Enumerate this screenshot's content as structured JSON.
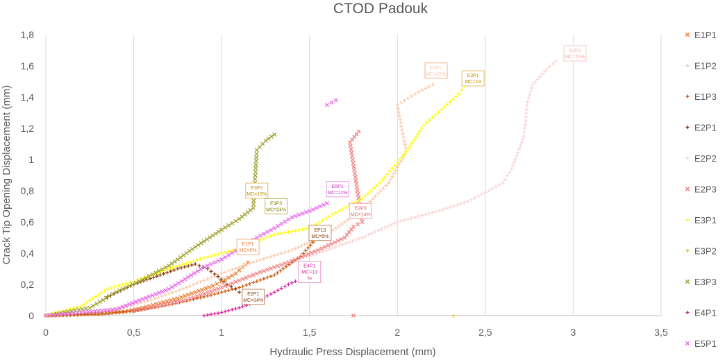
{
  "chart_data": {
    "type": "scatter",
    "title": "CTOD Padouk",
    "xlabel": "Hydraulic Press Displacement (mm)",
    "ylabel": "Crack Tip Opening Displacement (mm)",
    "xlim": [
      0,
      3.5
    ],
    "ylim": [
      0,
      1.8
    ],
    "x_ticks": [
      "0",
      "0,5",
      "1",
      "1,5",
      "2",
      "2,5",
      "3",
      "3,5"
    ],
    "y_ticks": [
      "0",
      "0,2",
      "0,4",
      "0,6",
      "0,8",
      "1",
      "1,2",
      "1,4",
      "1,6",
      "1,8"
    ],
    "grid": "vertical",
    "legend_position": "right",
    "series": [
      {
        "name": "E1P1",
        "color": "#ED7D31",
        "marker": "x",
        "points": [
          [
            0.0,
            0.0
          ],
          [
            0.15,
            0.005
          ],
          [
            0.3,
            0.012
          ],
          [
            0.45,
            0.025
          ],
          [
            0.55,
            0.05
          ],
          [
            0.65,
            0.08
          ],
          [
            0.75,
            0.11
          ],
          [
            0.85,
            0.15
          ],
          [
            0.95,
            0.19
          ],
          [
            1.02,
            0.23
          ],
          [
            1.08,
            0.27
          ],
          [
            1.12,
            0.31
          ],
          [
            1.15,
            0.34
          ]
        ]
      },
      {
        "name": "E1P2",
        "color": "#F8CBAD",
        "marker": "plus",
        "points": [
          [
            0.0,
            0.0
          ],
          [
            0.2,
            0.01
          ],
          [
            0.4,
            0.04
          ],
          [
            0.6,
            0.1
          ],
          [
            0.8,
            0.18
          ],
          [
            1.0,
            0.27
          ],
          [
            1.2,
            0.35
          ],
          [
            1.4,
            0.42
          ],
          [
            1.6,
            0.52
          ],
          [
            1.8,
            0.68
          ],
          [
            1.95,
            0.85
          ],
          [
            2.05,
            1.05
          ],
          [
            2.0,
            1.35
          ],
          [
            2.1,
            1.42
          ],
          [
            2.2,
            1.48
          ]
        ]
      },
      {
        "name": "E1P3",
        "color": "#C55A11",
        "marker": "plus",
        "points": [
          [
            0.0,
            0.0
          ],
          [
            0.3,
            0.01
          ],
          [
            0.5,
            0.03
          ],
          [
            0.7,
            0.07
          ],
          [
            0.9,
            0.12
          ],
          [
            1.1,
            0.18
          ],
          [
            1.3,
            0.26
          ],
          [
            1.45,
            0.38
          ],
          [
            1.52,
            0.47
          ]
        ]
      },
      {
        "name": "E2P1",
        "color": "#843C0C",
        "marker": "plus",
        "points": [
          [
            0.35,
            0.12
          ],
          [
            0.5,
            0.2
          ],
          [
            0.65,
            0.26
          ],
          [
            0.75,
            0.3
          ],
          [
            0.85,
            0.33
          ],
          [
            0.92,
            0.3
          ],
          [
            0.98,
            0.25
          ],
          [
            1.03,
            0.2
          ],
          [
            1.08,
            0.17
          ],
          [
            1.1,
            0.15
          ]
        ]
      },
      {
        "name": "E2P2",
        "color": "#FBD3D3",
        "marker": "plus",
        "points": [
          [
            0.0,
            0.0
          ],
          [
            0.5,
            0.06
          ],
          [
            1.0,
            0.2
          ],
          [
            1.5,
            0.38
          ],
          [
            1.8,
            0.5
          ],
          [
            2.0,
            0.6
          ],
          [
            2.2,
            0.66
          ],
          [
            2.4,
            0.73
          ],
          [
            2.5,
            0.79
          ],
          [
            2.6,
            0.85
          ],
          [
            2.65,
            0.94
          ],
          [
            2.72,
            1.15
          ],
          [
            2.74,
            1.37
          ],
          [
            2.77,
            1.48
          ],
          [
            2.85,
            1.58
          ],
          [
            2.9,
            1.63
          ]
        ]
      },
      {
        "name": "E2P3",
        "color": "#F08080",
        "marker": "x",
        "points": [
          [
            0.0,
            0.0
          ],
          [
            0.5,
            0.03
          ],
          [
            0.8,
            0.1
          ],
          [
            1.0,
            0.18
          ],
          [
            1.2,
            0.27
          ],
          [
            1.4,
            0.35
          ],
          [
            1.55,
            0.42
          ],
          [
            1.7,
            0.5
          ],
          [
            1.75,
            0.57
          ],
          [
            1.8,
            0.6
          ],
          [
            1.73,
            1.11
          ],
          [
            1.78,
            1.18
          ],
          [
            1.75,
            0.0
          ]
        ]
      },
      {
        "name": "E3P1",
        "color": "#FFFF00",
        "marker": "plus",
        "points": [
          [
            0.0,
            0.0
          ],
          [
            0.2,
            0.06
          ],
          [
            0.35,
            0.17
          ],
          [
            0.5,
            0.22
          ],
          [
            0.7,
            0.3
          ],
          [
            0.9,
            0.37
          ],
          [
            1.1,
            0.43
          ],
          [
            1.3,
            0.52
          ],
          [
            1.5,
            0.56
          ],
          [
            1.65,
            0.66
          ],
          [
            1.8,
            0.75
          ],
          [
            1.9,
            0.85
          ],
          [
            2.0,
            0.98
          ],
          [
            2.05,
            1.05
          ],
          [
            2.15,
            1.22
          ],
          [
            2.25,
            1.32
          ],
          [
            2.35,
            1.42
          ],
          [
            2.38,
            1.47
          ]
        ]
      },
      {
        "name": "E3P2",
        "color": "#FFC000",
        "marker": "plus",
        "points": [
          [
            2.32,
            0.0
          ]
        ]
      },
      {
        "name": "E3P3",
        "color": "#A0A030",
        "marker": "x",
        "points": [
          [
            0.0,
            0.0
          ],
          [
            0.25,
            0.05
          ],
          [
            0.4,
            0.15
          ],
          [
            0.55,
            0.23
          ],
          [
            0.7,
            0.32
          ],
          [
            0.85,
            0.44
          ],
          [
            1.0,
            0.55
          ],
          [
            1.1,
            0.62
          ],
          [
            1.18,
            0.69
          ],
          [
            1.2,
            1.06
          ],
          [
            1.25,
            1.12
          ],
          [
            1.3,
            1.16
          ]
        ]
      },
      {
        "name": "E4P1",
        "color": "#D6249F",
        "marker": "plus",
        "points": [
          [
            0.9,
            0.0
          ],
          [
            1.0,
            0.02
          ],
          [
            1.1,
            0.05
          ],
          [
            1.2,
            0.09
          ],
          [
            1.3,
            0.15
          ],
          [
            1.38,
            0.2
          ],
          [
            1.42,
            0.22
          ]
        ]
      },
      {
        "name": "E5P1",
        "color": "#E86BE8",
        "marker": "x",
        "points": [
          [
            0.0,
            0.0
          ],
          [
            0.4,
            0.04
          ],
          [
            0.7,
            0.17
          ],
          [
            0.9,
            0.31
          ],
          [
            1.0,
            0.36
          ],
          [
            1.1,
            0.43
          ],
          [
            1.2,
            0.5
          ],
          [
            1.3,
            0.56
          ],
          [
            1.4,
            0.63
          ],
          [
            1.5,
            0.67
          ],
          [
            1.6,
            0.72
          ],
          [
            1.6,
            1.35
          ],
          [
            1.65,
            1.38
          ]
        ]
      }
    ],
    "annotations": [
      {
        "lines": [
          "E1P2",
          "MC=25%"
        ],
        "x": 2.22,
        "y": 1.57,
        "color": "#F8CBAD",
        "border": "#F4B084"
      },
      {
        "lines": [
          "E3P1",
          "MC=19"
        ],
        "x": 2.43,
        "y": 1.52,
        "color": "#BF9000",
        "border": "#E2C060"
      },
      {
        "lines": [
          "E2P2",
          "MC=16%"
        ],
        "x": 3.01,
        "y": 1.68,
        "color": "#F4AFAF",
        "border": "#F8C8C8"
      },
      {
        "lines": [
          "E3P2",
          "MC=19%"
        ],
        "x": 1.2,
        "y": 0.8,
        "color": "#BF9000",
        "border": "#E2C060"
      },
      {
        "lines": [
          "E3P3",
          "MC=24%"
        ],
        "x": 1.31,
        "y": 0.7,
        "color": "#808000",
        "border": "#B8B860"
      },
      {
        "lines": [
          "E5P1",
          "MC=11%"
        ],
        "x": 1.66,
        "y": 0.81,
        "color": "#C030C0",
        "border": "#E89BE8"
      },
      {
        "lines": [
          "E2P3",
          "MC=14%"
        ],
        "x": 1.79,
        "y": 0.67,
        "color": "#E06060",
        "border": "#F0A0A0"
      },
      {
        "lines": [
          "EP13",
          "MC=5%"
        ],
        "x": 1.56,
        "y": 0.53,
        "color": "#843C0C",
        "border": "#C08060"
      },
      {
        "lines": [
          "E1P1",
          "MC=5%"
        ],
        "x": 1.15,
        "y": 0.44,
        "color": "#ED7D31",
        "border": "#F4B084"
      },
      {
        "lines": [
          "E4P1",
          "MC=13",
          "%"
        ],
        "x": 1.5,
        "y": 0.28,
        "color": "#D6249F",
        "border": "#E8A0D0"
      },
      {
        "lines": [
          "E2P1",
          "MC=14%"
        ],
        "x": 1.18,
        "y": 0.12,
        "color": "#843C0C",
        "border": "#C08060"
      }
    ]
  }
}
